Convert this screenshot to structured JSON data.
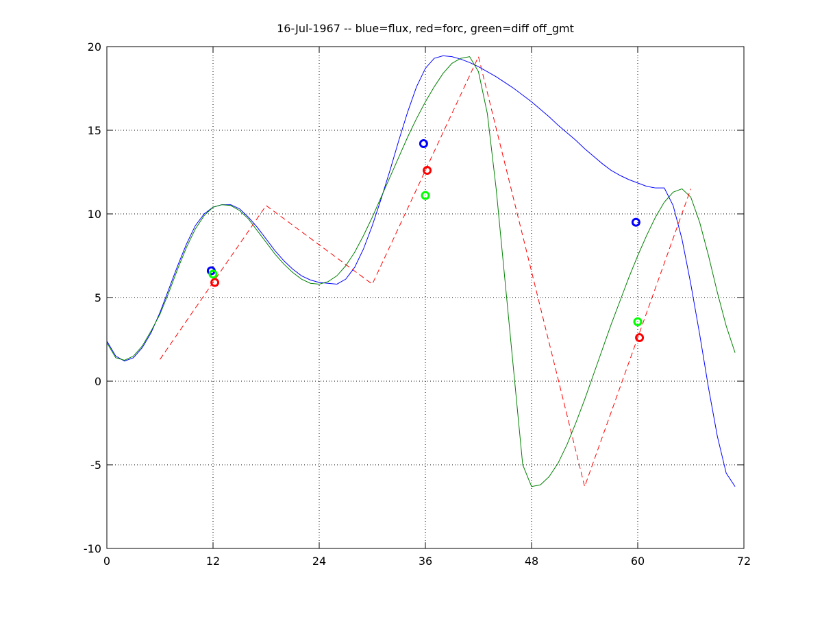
{
  "chart_data": {
    "type": "line",
    "title": "16-Jul-1967 -- blue=flux, red=forc, green=diff off_gmt",
    "xlim": [
      0,
      72
    ],
    "xticks": [
      0,
      12,
      24,
      36,
      48,
      60,
      72
    ],
    "ylim": [
      -10,
      20
    ],
    "yticks": [
      -10,
      -5,
      0,
      5,
      10,
      15,
      20
    ],
    "grid": true,
    "series": [
      {
        "color": "#0000ff",
        "style": "solid",
        "x": [
          0,
          1,
          2,
          3,
          4,
          5,
          6,
          7,
          8,
          9,
          10,
          11,
          12,
          13,
          14,
          15,
          16,
          17,
          18,
          19,
          20,
          21,
          22,
          23,
          24,
          25,
          26,
          27,
          28,
          29,
          30,
          31,
          32,
          33,
          34,
          35,
          36,
          37,
          38,
          39,
          40,
          41,
          42,
          43,
          44,
          45,
          46,
          47,
          48,
          49,
          50,
          51,
          52,
          53,
          54,
          55,
          56,
          57,
          58,
          59,
          60,
          61,
          62,
          63,
          64,
          65,
          66,
          67,
          68,
          69,
          70,
          71
        ],
        "values": [
          2.4,
          1.5,
          1.2,
          1.4,
          2.0,
          2.9,
          4.1,
          5.5,
          6.9,
          8.2,
          9.3,
          10.0,
          10.4,
          10.55,
          10.55,
          10.3,
          9.8,
          9.2,
          8.5,
          7.8,
          7.2,
          6.7,
          6.3,
          6.05,
          5.9,
          5.85,
          5.8,
          6.1,
          6.8,
          7.9,
          9.3,
          10.9,
          12.6,
          14.4,
          16.1,
          17.6,
          18.7,
          19.3,
          19.45,
          19.4,
          19.25,
          19.05,
          18.8,
          18.5,
          18.2,
          17.85,
          17.5,
          17.1,
          16.7,
          16.25,
          15.8,
          15.3,
          14.85,
          14.4,
          13.9,
          13.45,
          13.0,
          12.6,
          12.3,
          12.05,
          11.85,
          11.65,
          11.55,
          11.55,
          10.5,
          8.5,
          5.8,
          2.8,
          -0.4,
          -3.3,
          -5.5,
          -6.3
        ]
      },
      {
        "color": "#008000",
        "style": "solid",
        "x": [
          0,
          1,
          2,
          3,
          4,
          5,
          6,
          7,
          8,
          9,
          10,
          11,
          12,
          13,
          14,
          15,
          16,
          17,
          18,
          19,
          20,
          21,
          22,
          23,
          24,
          25,
          26,
          27,
          28,
          29,
          30,
          31,
          32,
          33,
          34,
          35,
          36,
          37,
          38,
          39,
          40,
          41,
          42,
          43,
          44,
          45,
          46,
          47,
          48,
          49,
          50,
          51,
          52,
          53,
          54,
          55,
          56,
          57,
          58,
          59,
          60,
          61,
          62,
          63,
          64,
          65,
          66,
          67,
          68,
          69,
          70,
          71
        ],
        "values": [
          2.3,
          1.4,
          1.25,
          1.5,
          2.1,
          3.0,
          4.0,
          5.3,
          6.7,
          8.0,
          9.1,
          9.9,
          10.4,
          10.55,
          10.5,
          10.2,
          9.7,
          9.0,
          8.3,
          7.6,
          7.0,
          6.5,
          6.1,
          5.85,
          5.8,
          5.95,
          6.3,
          6.9,
          7.7,
          8.7,
          9.8,
          11.0,
          12.2,
          13.4,
          14.6,
          15.7,
          16.7,
          17.6,
          18.4,
          19.0,
          19.3,
          19.4,
          18.5,
          16.0,
          11.5,
          6.0,
          0.5,
          -5.0,
          -6.3,
          -6.2,
          -5.7,
          -4.9,
          -3.8,
          -2.5,
          -1.1,
          0.4,
          1.9,
          3.4,
          4.8,
          6.2,
          7.5,
          8.7,
          9.8,
          10.7,
          11.3,
          11.5,
          11.0,
          9.5,
          7.5,
          5.3,
          3.3,
          1.7
        ]
      },
      {
        "color": "#ff0000",
        "style": "dashed",
        "x": [
          6,
          18,
          30,
          42,
          54,
          66
        ],
        "values": [
          1.3,
          10.5,
          5.8,
          19.4,
          -6.3,
          11.5
        ]
      },
      {
        "color": "#0000ff",
        "style": "marker",
        "x": [
          11.8,
          35.8,
          59.8
        ],
        "values": [
          6.6,
          14.2,
          9.5
        ]
      },
      {
        "color": "#ff0000",
        "style": "marker",
        "x": [
          12.2,
          36.2,
          60.2
        ],
        "values": [
          5.9,
          12.6,
          2.6
        ]
      },
      {
        "color": "#00ff00",
        "style": "marker",
        "x": [
          12,
          36,
          60
        ],
        "values": [
          6.4,
          11.1,
          3.55
        ]
      }
    ]
  }
}
